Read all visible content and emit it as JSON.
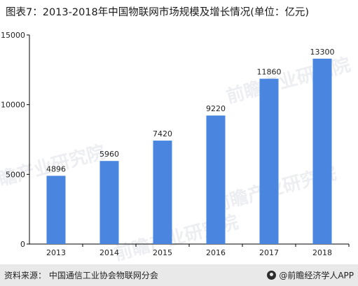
{
  "title": "图表7：2013-2018年中国物联网市场规模及增长情况(单位：亿元)",
  "footer": {
    "source": "资料来源：  中国通信工业协会物联网分会",
    "brand": "@前瞻经济学人APP"
  },
  "watermark": "前瞻产业研究院",
  "colors": {
    "bar": "#4a86e0",
    "axis": "#000000"
  },
  "chart_data": {
    "type": "bar",
    "categories": [
      "2013",
      "2014",
      "2015",
      "2016",
      "2017",
      "2018"
    ],
    "values": [
      4896,
      5960,
      7420,
      9220,
      11860,
      13300
    ],
    "data_labels": [
      "4896",
      "5960",
      "7420",
      "9220",
      "11860",
      "13300"
    ],
    "yticks": [
      0,
      5000,
      10000,
      15000
    ],
    "ylim": [
      0,
      15000
    ],
    "grid": false,
    "legend": "none"
  }
}
